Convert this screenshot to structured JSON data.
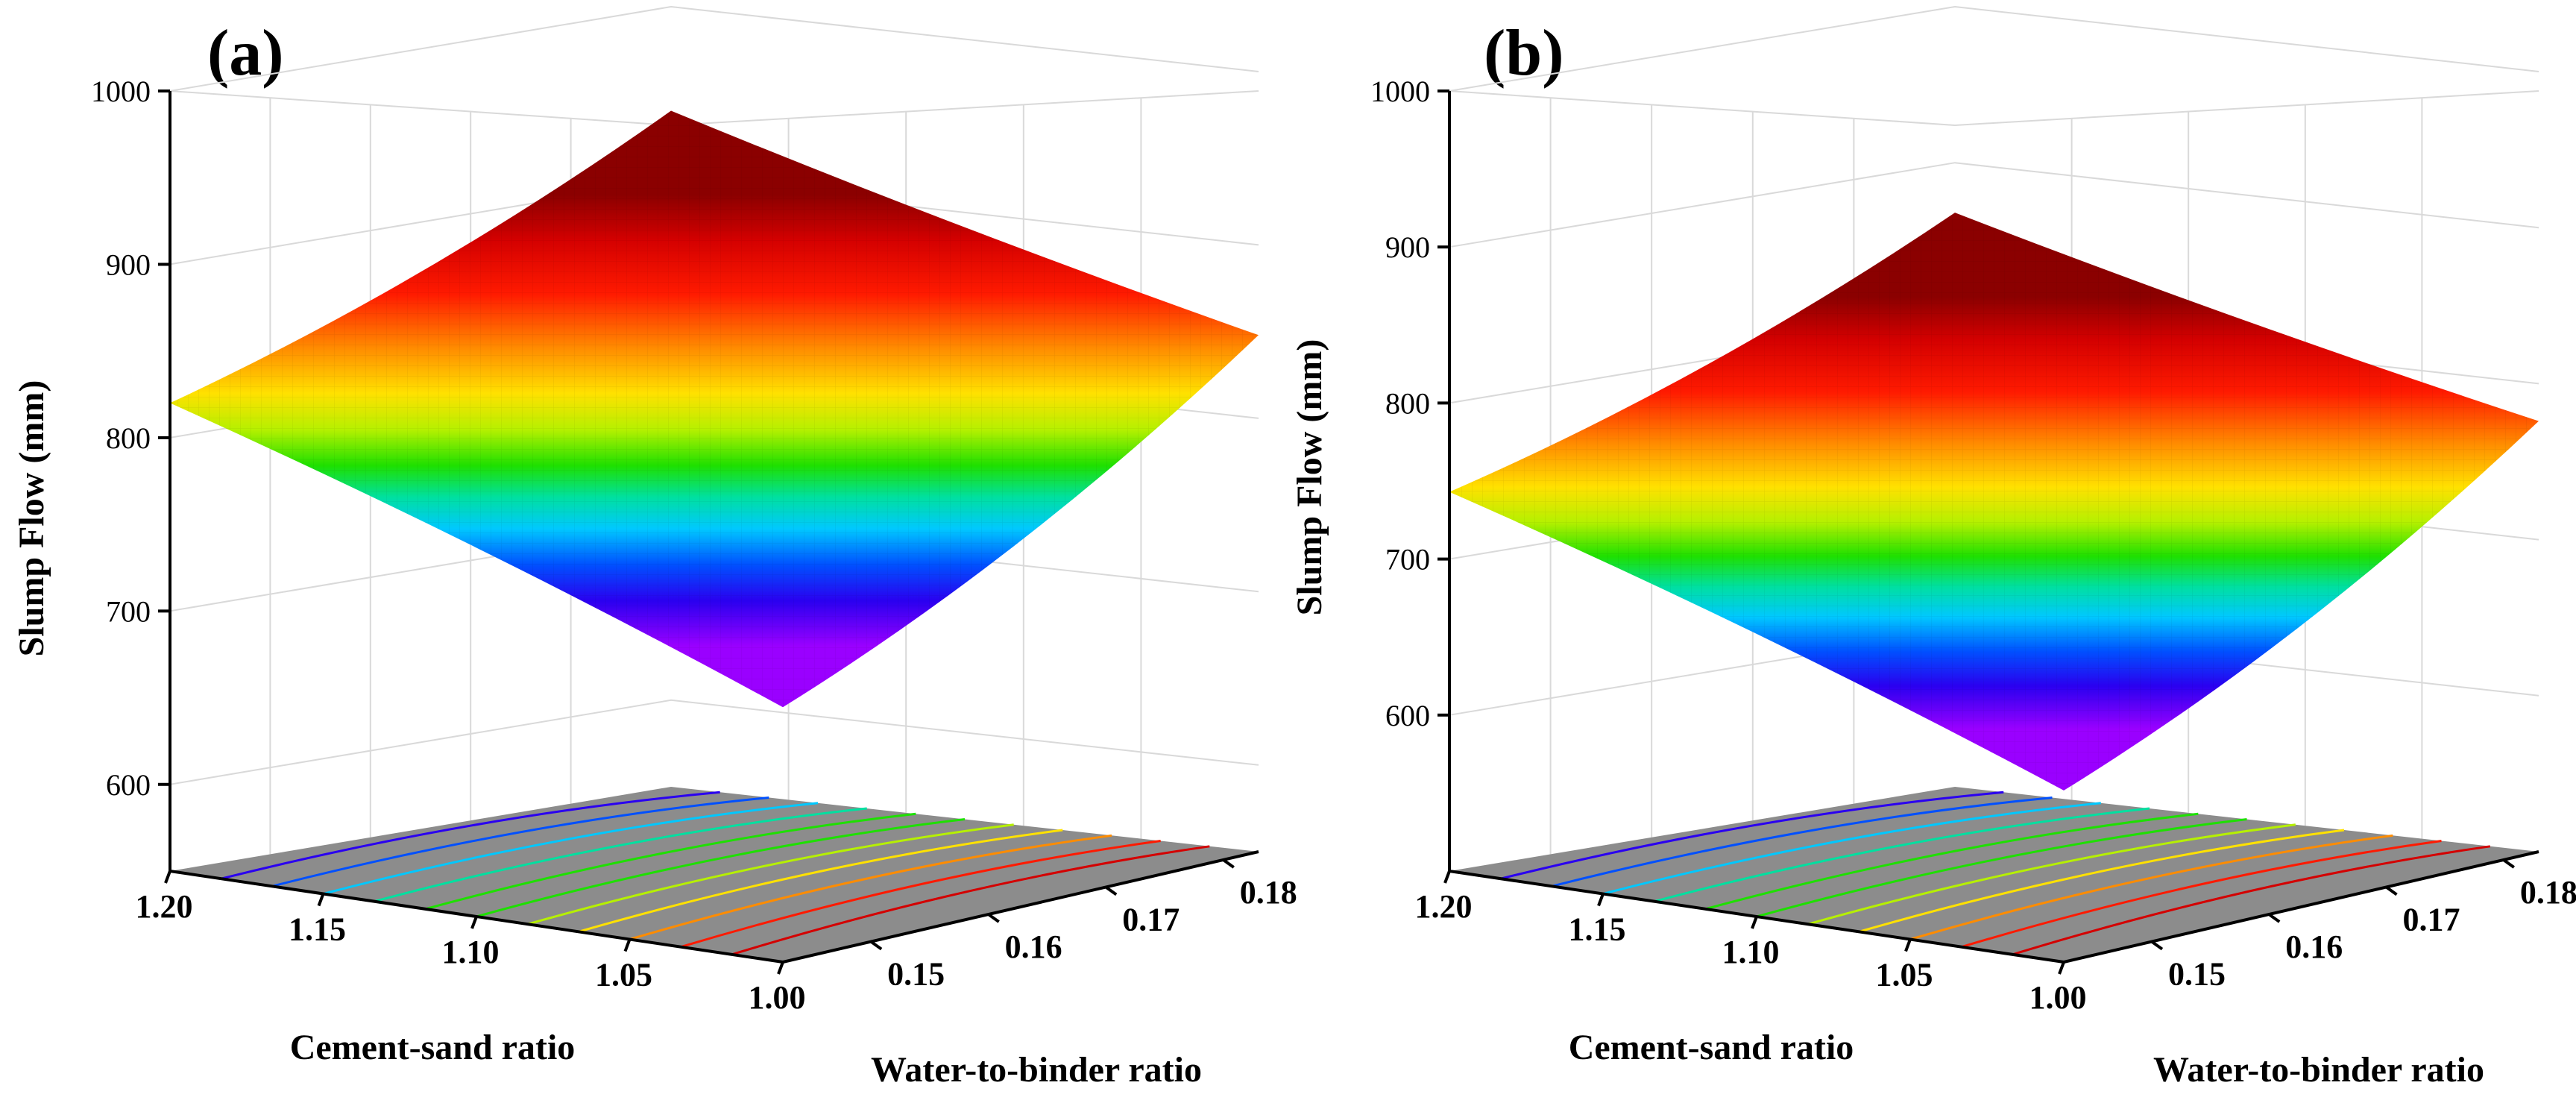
{
  "chart_data": [
    {
      "type": "surface3d",
      "panel_label": "(a)",
      "zlabel": "Slump Flow (mm)",
      "xlabel": "Cement-sand ratio",
      "ylabel": "Water-to-binder ratio",
      "zlim": [
        550,
        1000
      ],
      "z_ticks": [
        "600",
        "700",
        "800",
        "900",
        "1000"
      ],
      "x_ticks": [
        "1.20",
        "1.15",
        "1.10",
        "1.05",
        "1.00"
      ],
      "y_ticks": [
        "0.15",
        "0.16",
        "0.17",
        "0.18"
      ],
      "corners": {
        "cs1.20_wb0.18": 940,
        "cs1.20_wb0.14": 820,
        "cs1.00_wb0.14": 697,
        "cs1.00_wb0.18": 848
      },
      "contours": 12
    },
    {
      "type": "surface3d",
      "panel_label": "(b)",
      "zlabel": "Slump Flow (mm)",
      "xlabel": "Cement-sand ratio",
      "ylabel": "Water-to-binder ratio",
      "zlim": [
        500,
        1000
      ],
      "z_ticks": [
        "600",
        "700",
        "800",
        "900",
        "1000"
      ],
      "x_ticks": [
        "1.20",
        "1.15",
        "1.10",
        "1.05",
        "1.00"
      ],
      "y_ticks": [
        "0.15",
        "0.16",
        "0.17",
        "0.18"
      ],
      "corners": {
        "cs1.20_wb0.18": 868,
        "cs1.20_wb0.14": 743,
        "cs1.00_wb0.14": 610,
        "cs1.00_wb0.18": 776
      },
      "contours": 12
    }
  ]
}
